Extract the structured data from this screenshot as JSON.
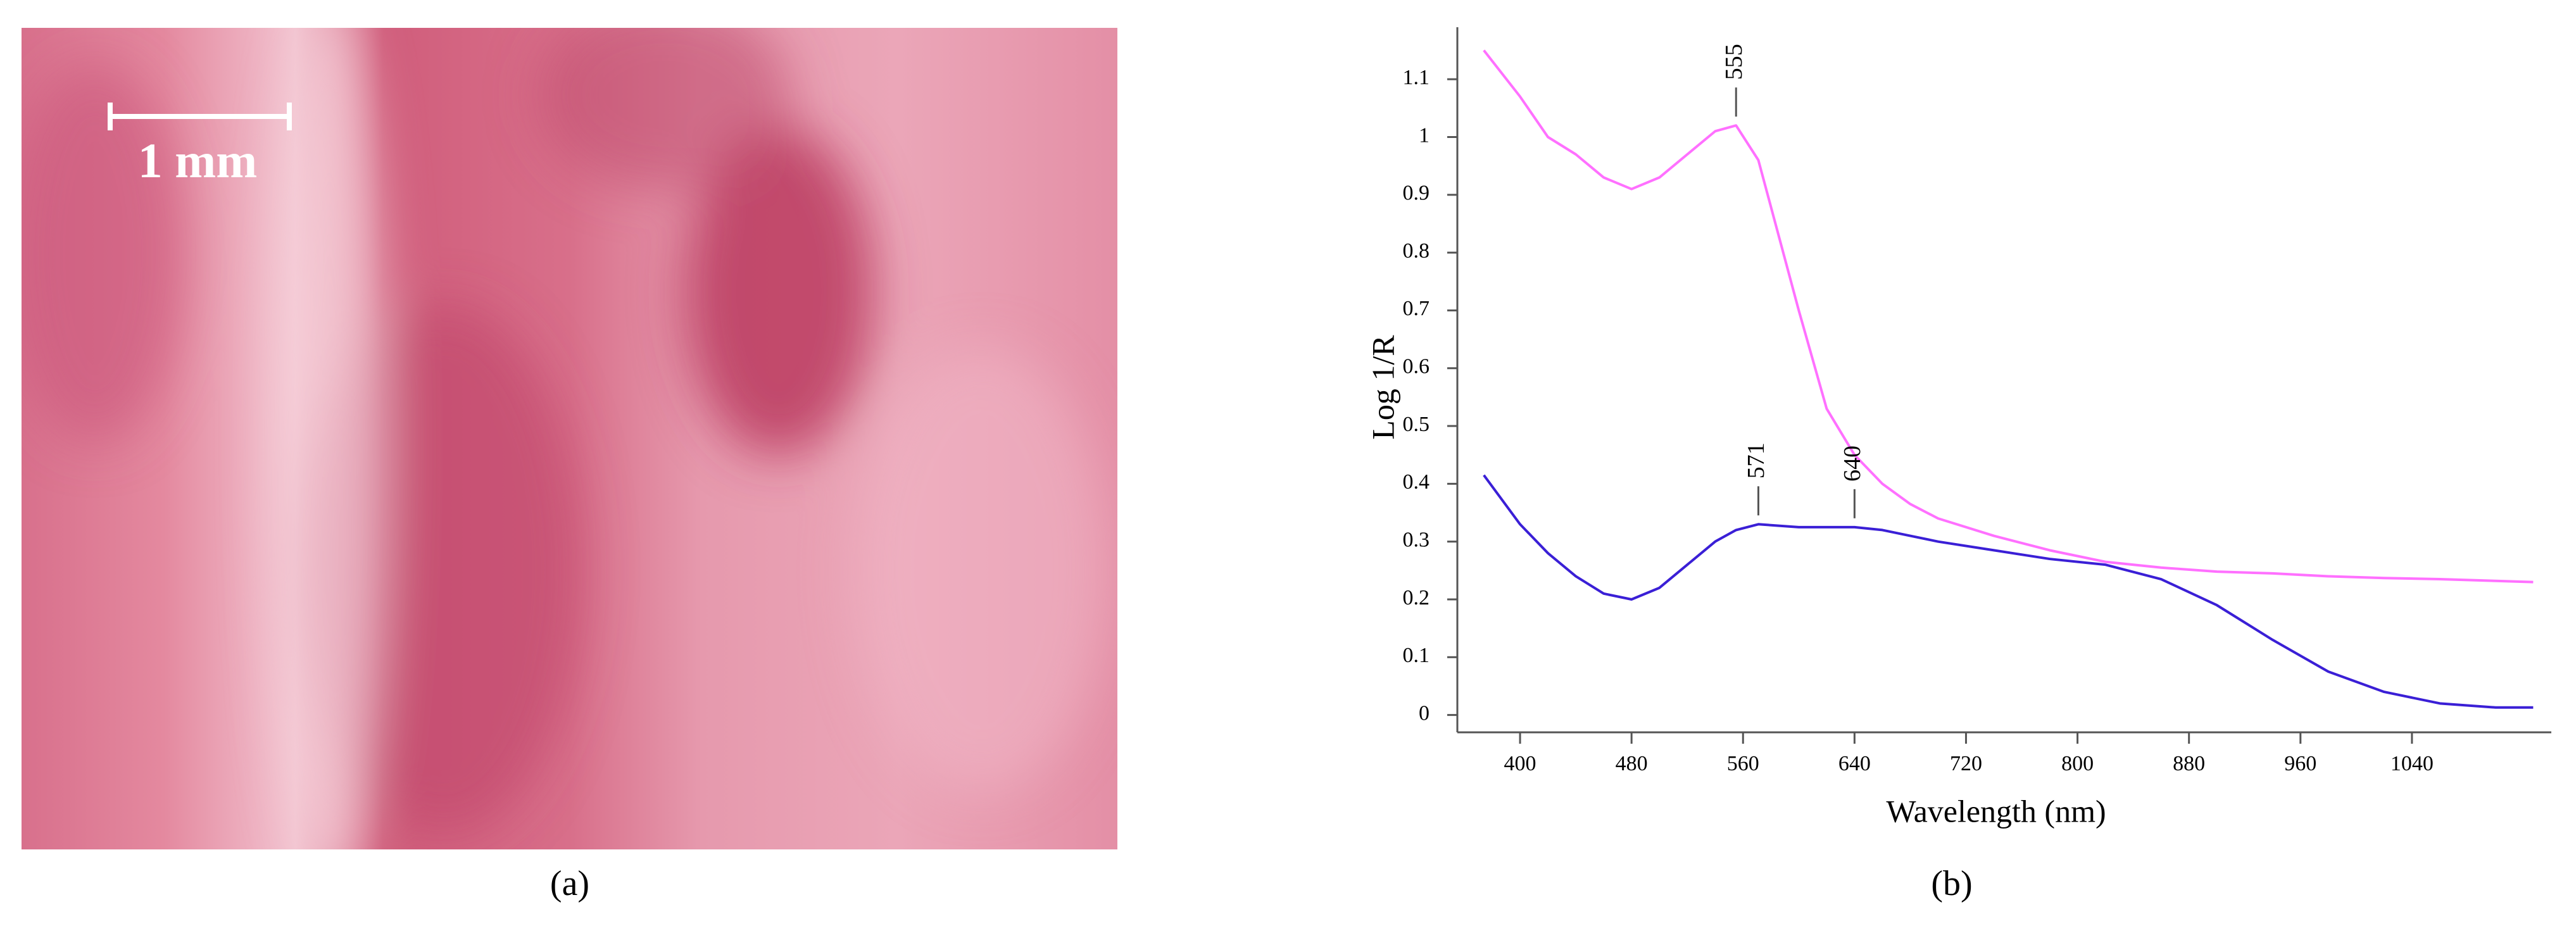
{
  "photo": {
    "scale_bar": "1 mm",
    "caption": "(a)"
  },
  "chart_data": {
    "type": "line",
    "caption": "(b)",
    "x_label": "Wavelength (nm)",
    "y_label": "Log 1/R",
    "x": [
      374,
      400,
      420,
      440,
      460,
      480,
      500,
      520,
      540,
      555,
      571,
      600,
      620,
      640,
      660,
      680,
      700,
      740,
      780,
      820,
      860,
      900,
      940,
      980,
      1020,
      1060,
      1100,
      1127
    ],
    "series": [
      {
        "color": "#ff70ff",
        "values": [
          1.15,
          1.07,
          1.0,
          0.97,
          0.93,
          0.91,
          0.93,
          0.97,
          1.01,
          1.02,
          0.96,
          0.7,
          0.53,
          0.45,
          0.4,
          0.365,
          0.34,
          0.31,
          0.285,
          0.265,
          0.255,
          0.248,
          0.245,
          0.24,
          0.237,
          0.235,
          0.232,
          0.23
        ]
      },
      {
        "color": "#3a1fd6",
        "values": [
          0.415,
          0.33,
          0.28,
          0.24,
          0.21,
          0.2,
          0.22,
          0.26,
          0.3,
          0.32,
          0.33,
          0.325,
          0.325,
          0.325,
          0.32,
          0.31,
          0.3,
          0.285,
          0.27,
          0.26,
          0.235,
          0.19,
          0.13,
          0.075,
          0.04,
          0.02,
          0.013,
          0.013
        ]
      }
    ],
    "annotations": [
      {
        "x": 555,
        "y": 1.02
      },
      {
        "x": 571,
        "y": 0.33
      },
      {
        "x": 640,
        "y": 0.325
      }
    ],
    "xlim": [
      355,
      1140
    ],
    "ylim": [
      -0.03,
      1.19
    ],
    "xticks": [
      400,
      480,
      560,
      640,
      720,
      800,
      880,
      960,
      1040
    ],
    "yticks": [
      0,
      0.1,
      0.2,
      0.3,
      0.4,
      0.5,
      0.6,
      0.7,
      0.8,
      0.9,
      1.0,
      1.1
    ],
    "grid": false
  }
}
